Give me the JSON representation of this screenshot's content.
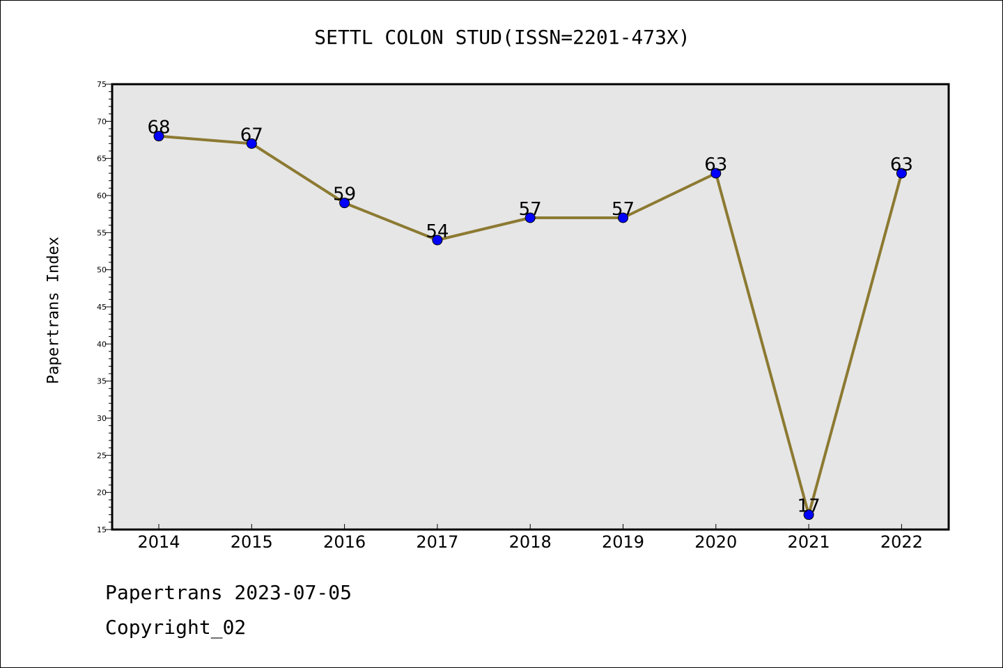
{
  "chart_data": {
    "type": "line",
    "title": "SETTL COLON STUD(ISSN=2201-473X)",
    "xlabel": "",
    "ylabel": "Papertrans Index",
    "categories": [
      "2014",
      "2015",
      "2016",
      "2017",
      "2018",
      "2019",
      "2020",
      "2021",
      "2022"
    ],
    "series": [
      {
        "values": [
          68,
          67,
          59,
          54,
          57,
          57,
          63,
          17,
          63
        ]
      }
    ],
    "ylim": [
      15,
      75
    ],
    "yticks": [
      15,
      20,
      25,
      30,
      35,
      40,
      45,
      50,
      55,
      60,
      65,
      70,
      75
    ],
    "grid": false,
    "show_data_labels": true
  },
  "colors": {
    "line": "#8c7a32",
    "marker": "#0000ff",
    "plot_background": "#e6e6e6"
  },
  "footer": {
    "date_text": "Papertrans 2023-07-05",
    "copyright_text": "Copyright_02"
  }
}
